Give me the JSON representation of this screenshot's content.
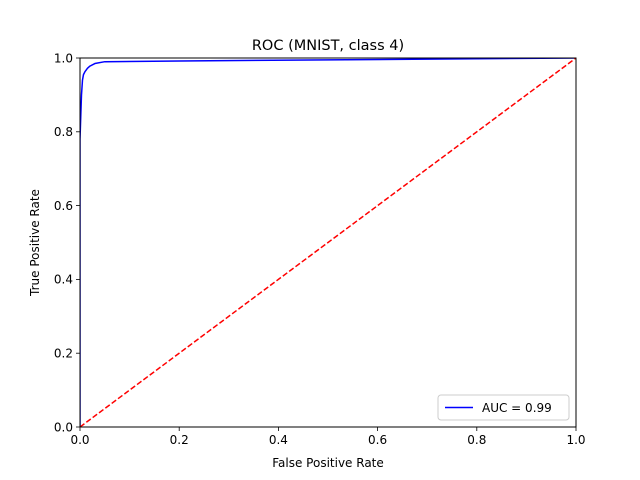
{
  "chart_data": {
    "type": "line",
    "title": "ROC (MNIST, class 4)",
    "xlabel": "False Positive Rate",
    "ylabel": "True Positive Rate",
    "xlim": [
      0.0,
      1.0
    ],
    "ylim": [
      0.0,
      1.0
    ],
    "xticks": [
      "0.0",
      "0.2",
      "0.4",
      "0.6",
      "0.8",
      "1.0"
    ],
    "yticks": [
      "0.0",
      "0.2",
      "0.4",
      "0.6",
      "0.8",
      "1.0"
    ],
    "grid": false,
    "legend_position": "lower-right",
    "series": [
      {
        "name": "AUC = 0.99",
        "color": "#0000ff",
        "style": "solid",
        "x": [
          0.0,
          0.0,
          0.002,
          0.003,
          0.005,
          0.007,
          0.01,
          0.015,
          0.02,
          0.03,
          0.05,
          0.2,
          0.5,
          0.8,
          1.0
        ],
        "y": [
          0.0,
          0.78,
          0.86,
          0.9,
          0.94,
          0.955,
          0.963,
          0.972,
          0.978,
          0.985,
          0.99,
          0.992,
          0.995,
          0.998,
          1.0
        ]
      },
      {
        "color": "#ff0000",
        "style": "dashed",
        "x": [
          0.0,
          1.0
        ],
        "y": [
          0.0,
          1.0
        ]
      }
    ]
  }
}
